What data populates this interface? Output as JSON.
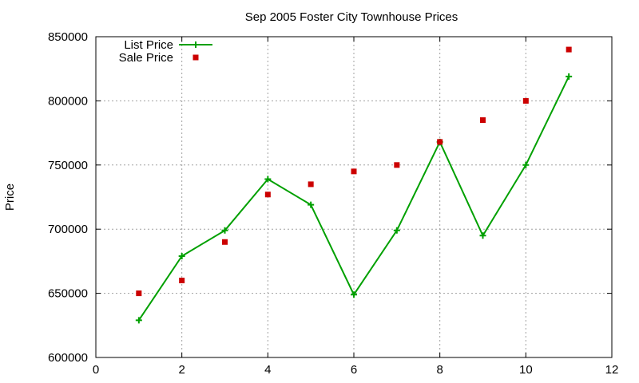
{
  "chart_data": {
    "type": "line",
    "title": "Sep 2005 Foster City Townhouse Prices",
    "xlabel": "",
    "ylabel": "Price",
    "xlim": [
      0,
      12
    ],
    "ylim": [
      600000,
      850000
    ],
    "xticks": [
      0,
      2,
      4,
      6,
      8,
      10,
      12
    ],
    "yticks": [
      600000,
      650000,
      700000,
      750000,
      800000,
      850000
    ],
    "grid": true,
    "legend_position": "top-left",
    "series": [
      {
        "name": "List Price",
        "style": "line+plus",
        "color": "#00a000",
        "x": [
          1,
          2,
          3,
          4,
          5,
          6,
          7,
          8,
          9,
          10,
          11
        ],
        "y": [
          629000,
          679000,
          699000,
          739000,
          719000,
          649000,
          699000,
          768000,
          695000,
          750000,
          819000
        ]
      },
      {
        "name": "Sale Price",
        "style": "points-square",
        "color": "#cc0000",
        "x": [
          1,
          2,
          3,
          4,
          5,
          6,
          7,
          8,
          9,
          10,
          11
        ],
        "y": [
          650000,
          660000,
          690000,
          727000,
          735000,
          745000,
          750000,
          768000,
          785000,
          800000,
          840000
        ]
      }
    ]
  }
}
